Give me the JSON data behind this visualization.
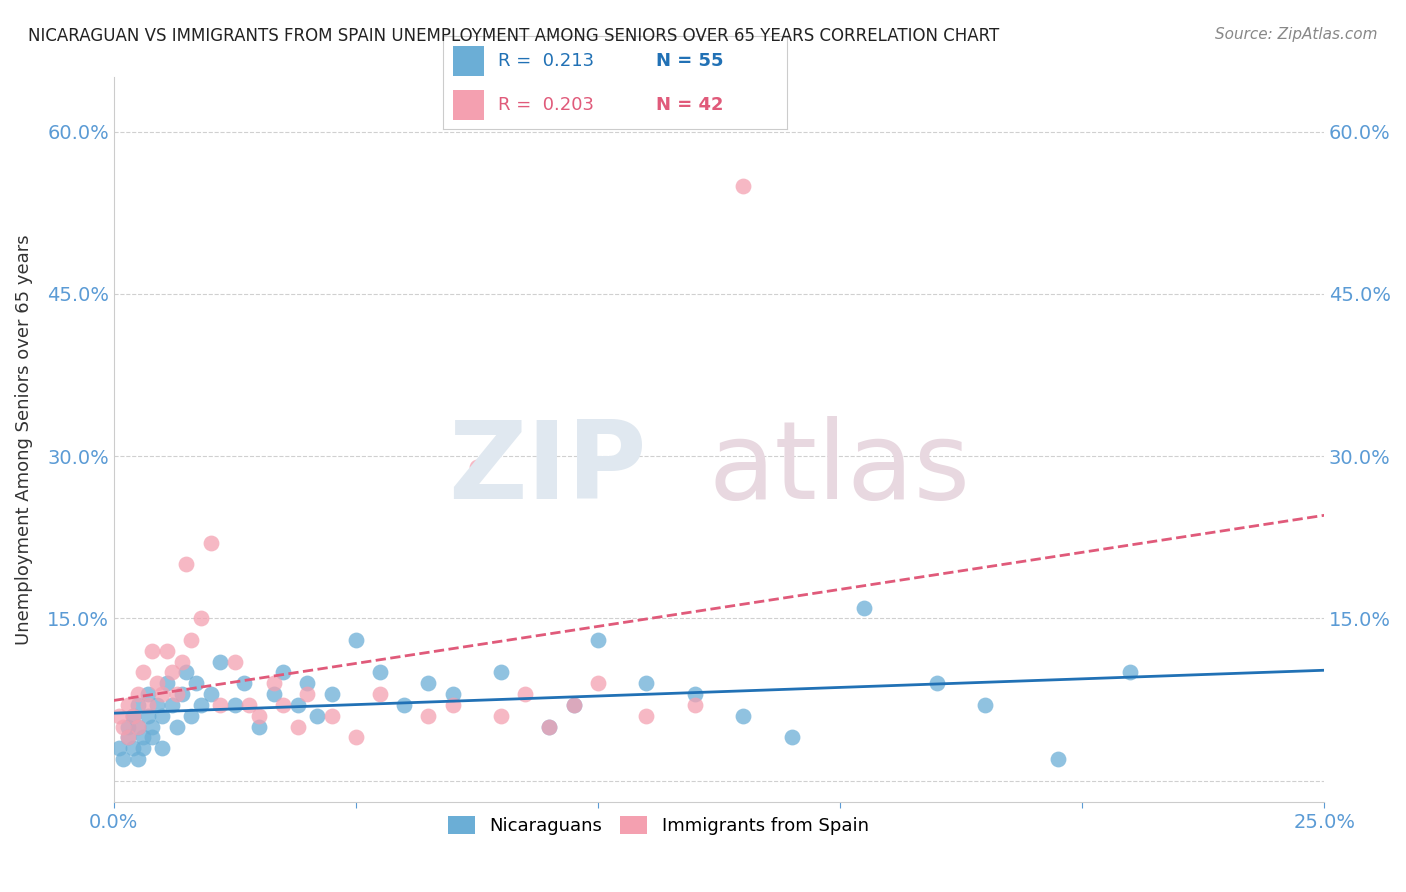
{
  "title": "NICARAGUAN VS IMMIGRANTS FROM SPAIN UNEMPLOYMENT AMONG SENIORS OVER 65 YEARS CORRELATION CHART",
  "source": "Source: ZipAtlas.com",
  "ylabel": "Unemployment Among Seniors over 65 years",
  "xlim": [
    0.0,
    0.25
  ],
  "ylim": [
    -0.02,
    0.65
  ],
  "xticks": [
    0.0,
    0.05,
    0.1,
    0.15,
    0.2,
    0.25
  ],
  "xticklabels": [
    "0.0%",
    "",
    "",
    "",
    "",
    "25.0%"
  ],
  "yticks": [
    0.0,
    0.15,
    0.3,
    0.45,
    0.6
  ],
  "yticklabels": [
    "",
    "15.0%",
    "30.0%",
    "45.0%",
    "60.0%"
  ],
  "blue_color": "#6baed6",
  "pink_color": "#f4a0b0",
  "blue_line_color": "#2171b5",
  "pink_line_color": "#e05a7a",
  "legend_R_blue": "0.213",
  "legend_N_blue": "55",
  "legend_R_pink": "0.203",
  "legend_N_pink": "42",
  "label_blue": "Nicaraguans",
  "label_pink": "Immigrants from Spain",
  "blue_scatter_x": [
    0.001,
    0.002,
    0.003,
    0.003,
    0.004,
    0.004,
    0.005,
    0.005,
    0.005,
    0.006,
    0.006,
    0.007,
    0.007,
    0.008,
    0.008,
    0.009,
    0.01,
    0.01,
    0.011,
    0.012,
    0.013,
    0.014,
    0.015,
    0.016,
    0.017,
    0.018,
    0.02,
    0.022,
    0.025,
    0.027,
    0.03,
    0.033,
    0.035,
    0.038,
    0.04,
    0.042,
    0.045,
    0.05,
    0.055,
    0.06,
    0.065,
    0.07,
    0.08,
    0.09,
    0.095,
    0.1,
    0.11,
    0.12,
    0.13,
    0.14,
    0.155,
    0.17,
    0.18,
    0.195,
    0.21
  ],
  "blue_scatter_y": [
    0.03,
    0.02,
    0.05,
    0.04,
    0.03,
    0.06,
    0.05,
    0.02,
    0.07,
    0.04,
    0.03,
    0.06,
    0.08,
    0.05,
    0.04,
    0.07,
    0.06,
    0.03,
    0.09,
    0.07,
    0.05,
    0.08,
    0.1,
    0.06,
    0.09,
    0.07,
    0.08,
    0.11,
    0.07,
    0.09,
    0.05,
    0.08,
    0.1,
    0.07,
    0.09,
    0.06,
    0.08,
    0.13,
    0.1,
    0.07,
    0.09,
    0.08,
    0.1,
    0.05,
    0.07,
    0.13,
    0.09,
    0.08,
    0.06,
    0.04,
    0.16,
    0.09,
    0.07,
    0.02,
    0.1
  ],
  "pink_scatter_x": [
    0.001,
    0.002,
    0.003,
    0.003,
    0.004,
    0.005,
    0.005,
    0.006,
    0.007,
    0.008,
    0.009,
    0.01,
    0.011,
    0.012,
    0.013,
    0.014,
    0.015,
    0.016,
    0.018,
    0.02,
    0.022,
    0.025,
    0.028,
    0.03,
    0.033,
    0.035,
    0.038,
    0.04,
    0.045,
    0.05,
    0.055,
    0.065,
    0.07,
    0.075,
    0.08,
    0.085,
    0.09,
    0.095,
    0.1,
    0.11,
    0.12,
    0.13
  ],
  "pink_scatter_y": [
    0.06,
    0.05,
    0.07,
    0.04,
    0.06,
    0.08,
    0.05,
    0.1,
    0.07,
    0.12,
    0.09,
    0.08,
    0.12,
    0.1,
    0.08,
    0.11,
    0.2,
    0.13,
    0.15,
    0.22,
    0.07,
    0.11,
    0.07,
    0.06,
    0.09,
    0.07,
    0.05,
    0.08,
    0.06,
    0.04,
    0.08,
    0.06,
    0.07,
    0.29,
    0.06,
    0.08,
    0.05,
    0.07,
    0.09,
    0.06,
    0.07,
    0.55
  ],
  "background_color": "#ffffff",
  "tick_color": "#5b9bd5",
  "grid_color": "#d0d0d0"
}
